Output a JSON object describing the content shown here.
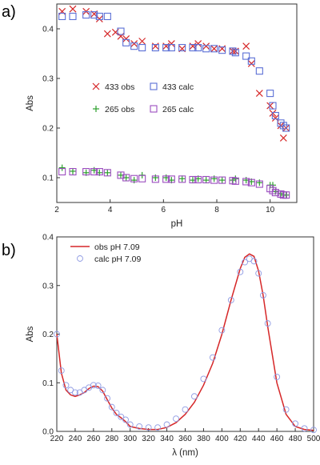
{
  "panels": {
    "a": "a)",
    "b": "b)"
  },
  "chart_data": [
    {
      "type": "scatter",
      "xlabel": "pH",
      "ylabel": "Abs",
      "xlim": [
        2,
        11
      ],
      "ylim": [
        0.05,
        0.45
      ],
      "xticks": [
        2,
        4,
        6,
        8,
        10
      ],
      "yticks": [
        0.1,
        0.2,
        0.3,
        0.4
      ],
      "grid": false,
      "legend": "center",
      "series": [
        {
          "name": "433 obs",
          "marker": "x",
          "color": "#d62728",
          "x": [
            2.2,
            2.6,
            3.1,
            3.4,
            3.6,
            3.9,
            4.2,
            4.4,
            4.6,
            4.9,
            5.2,
            5.7,
            6.1,
            6.3,
            6.7,
            7.1,
            7.3,
            7.6,
            7.9,
            8.2,
            8.6,
            8.7,
            9.1,
            9.3,
            9.6,
            10.0,
            10.1,
            10.2,
            10.4,
            10.5,
            10.6
          ],
          "y": [
            0.435,
            0.44,
            0.435,
            0.43,
            0.42,
            0.39,
            0.393,
            0.385,
            0.38,
            0.37,
            0.375,
            0.365,
            0.365,
            0.37,
            0.36,
            0.365,
            0.37,
            0.365,
            0.36,
            0.36,
            0.355,
            0.355,
            0.365,
            0.33,
            0.27,
            0.245,
            0.23,
            0.22,
            0.205,
            0.18,
            0.2
          ]
        },
        {
          "name": "433 calc",
          "marker": "square",
          "color": "#5b6fd6",
          "x": [
            2.2,
            2.6,
            3.1,
            3.4,
            3.6,
            3.9,
            4.4,
            4.6,
            4.9,
            5.2,
            5.7,
            6.1,
            6.3,
            6.7,
            7.1,
            7.3,
            7.6,
            7.9,
            8.2,
            8.6,
            8.7,
            9.1,
            9.3,
            9.6,
            10.0,
            10.1,
            10.2,
            10.4,
            10.5,
            10.6
          ],
          "y": [
            0.425,
            0.425,
            0.428,
            0.428,
            0.425,
            0.425,
            0.395,
            0.372,
            0.365,
            0.362,
            0.362,
            0.362,
            0.362,
            0.362,
            0.362,
            0.362,
            0.36,
            0.36,
            0.357,
            0.355,
            0.352,
            0.345,
            0.335,
            0.315,
            0.27,
            0.245,
            0.225,
            0.21,
            0.205,
            0.2
          ]
        },
        {
          "name": "265 obs",
          "marker": "plus",
          "color": "#2ca02c",
          "x": [
            2.2,
            2.6,
            3.1,
            3.4,
            3.6,
            3.9,
            4.4,
            4.6,
            4.9,
            5.2,
            5.7,
            6.1,
            6.3,
            6.7,
            7.1,
            7.3,
            7.6,
            7.9,
            8.2,
            8.6,
            8.7,
            9.1,
            9.3,
            9.6,
            10.0,
            10.1,
            10.2,
            10.4,
            10.5,
            10.6
          ],
          "y": [
            0.12,
            0.113,
            0.11,
            0.115,
            0.11,
            0.11,
            0.105,
            0.1,
            0.095,
            0.105,
            0.1,
            0.1,
            0.095,
            0.098,
            0.095,
            0.098,
            0.095,
            0.098,
            0.095,
            0.095,
            0.098,
            0.095,
            0.092,
            0.09,
            0.085,
            0.085,
            0.072,
            0.068,
            0.065,
            0.065
          ]
        },
        {
          "name": "265 calc",
          "marker": "square",
          "color": "#9b4dbf",
          "x": [
            2.2,
            2.6,
            3.1,
            3.4,
            3.6,
            3.9,
            4.4,
            4.6,
            4.9,
            5.2,
            5.7,
            6.1,
            6.3,
            6.7,
            7.1,
            7.3,
            7.6,
            7.9,
            8.2,
            8.6,
            8.7,
            9.1,
            9.3,
            9.6,
            10.0,
            10.1,
            10.2,
            10.4,
            10.5,
            10.6
          ],
          "y": [
            0.112,
            0.112,
            0.112,
            0.112,
            0.112,
            0.11,
            0.105,
            0.1,
            0.098,
            0.098,
            0.097,
            0.097,
            0.097,
            0.097,
            0.096,
            0.096,
            0.096,
            0.095,
            0.095,
            0.094,
            0.093,
            0.092,
            0.09,
            0.087,
            0.078,
            0.074,
            0.07,
            0.067,
            0.065,
            0.065
          ]
        }
      ]
    },
    {
      "type": "line",
      "xlabel": "λ (nm)",
      "ylabel": "Abs",
      "xlim": [
        220,
        500
      ],
      "ylim": [
        0,
        0.4
      ],
      "xticks": [
        220,
        240,
        260,
        280,
        300,
        320,
        340,
        360,
        380,
        400,
        420,
        440,
        460,
        480,
        500
      ],
      "yticks": [
        0.0,
        0.1,
        0.2,
        0.3,
        0.4
      ],
      "grid": false,
      "legend": "top-left",
      "series": [
        {
          "name": "obs pH 7.09",
          "style": "line",
          "color": "#d62728",
          "x": [
            220,
            225,
            230,
            235,
            240,
            245,
            250,
            255,
            260,
            265,
            270,
            275,
            280,
            285,
            290,
            295,
            300,
            310,
            320,
            330,
            340,
            350,
            360,
            370,
            380,
            390,
            400,
            410,
            420,
            425,
            430,
            435,
            440,
            445,
            450,
            460,
            470,
            480,
            490,
            500
          ],
          "y": [
            0.2,
            0.12,
            0.085,
            0.075,
            0.072,
            0.075,
            0.08,
            0.088,
            0.093,
            0.092,
            0.083,
            0.065,
            0.048,
            0.035,
            0.028,
            0.02,
            0.01,
            0.006,
            0.004,
            0.004,
            0.008,
            0.018,
            0.035,
            0.06,
            0.095,
            0.14,
            0.2,
            0.27,
            0.335,
            0.358,
            0.365,
            0.36,
            0.33,
            0.28,
            0.215,
            0.1,
            0.035,
            0.01,
            0.004,
            0.002
          ]
        },
        {
          "name": "calc pH 7.09",
          "style": "open-circles",
          "color": "#8f9be3",
          "x": [
            220,
            225,
            230,
            235,
            240,
            245,
            250,
            255,
            260,
            265,
            270,
            275,
            280,
            285,
            290,
            295,
            300,
            310,
            320,
            330,
            340,
            350,
            360,
            370,
            380,
            390,
            400,
            410,
            420,
            425,
            430,
            435,
            440,
            445,
            450,
            460,
            470,
            480,
            490,
            500
          ],
          "y": [
            0.2,
            0.125,
            0.095,
            0.085,
            0.08,
            0.08,
            0.085,
            0.09,
            0.095,
            0.094,
            0.085,
            0.068,
            0.05,
            0.038,
            0.03,
            0.024,
            0.014,
            0.01,
            0.008,
            0.008,
            0.014,
            0.026,
            0.045,
            0.072,
            0.108,
            0.152,
            0.208,
            0.27,
            0.328,
            0.348,
            0.355,
            0.35,
            0.325,
            0.28,
            0.222,
            0.112,
            0.045,
            0.016,
            0.006,
            0.003
          ]
        }
      ]
    }
  ]
}
